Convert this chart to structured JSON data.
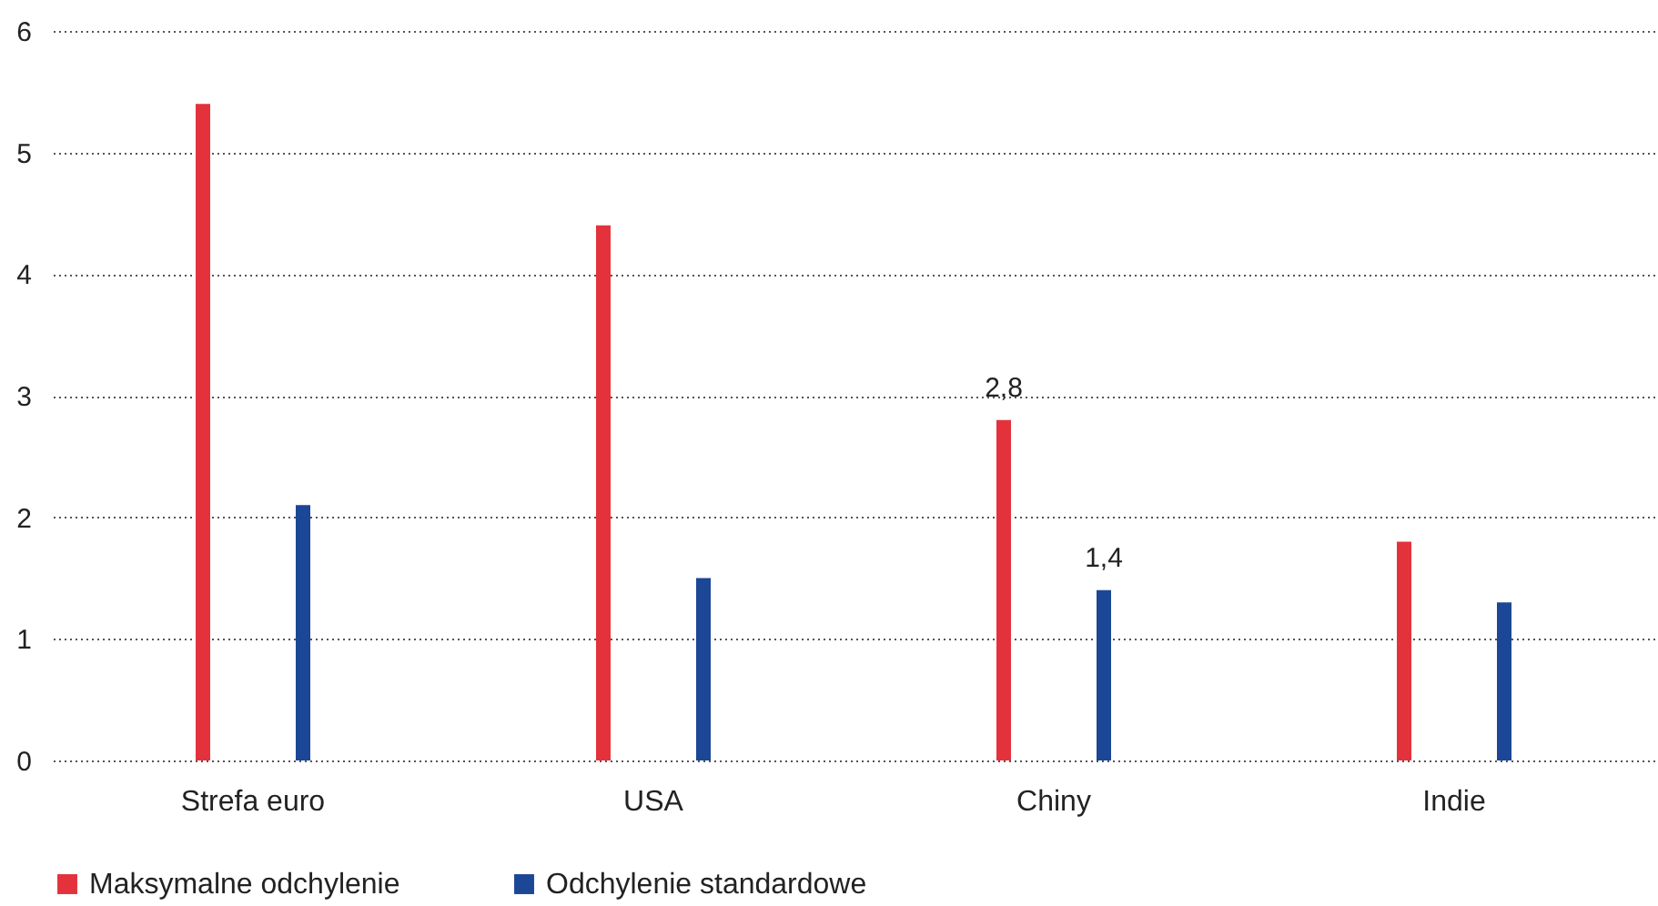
{
  "chart_data": {
    "type": "bar",
    "categories": [
      "Strefa euro",
      "USA",
      "Chiny",
      "Indie"
    ],
    "series": [
      {
        "name": "Maksymalne odchylenie",
        "color": "#e3323c",
        "values": [
          5.4,
          4.4,
          2.8,
          1.8
        ],
        "value_labels": [
          null,
          null,
          "2,8",
          null
        ]
      },
      {
        "name": "Odchylenie standardowe",
        "color": "#1c4696",
        "values": [
          2.1,
          1.5,
          1.4,
          1.3
        ],
        "value_labels": [
          null,
          null,
          "1,4",
          null
        ]
      }
    ],
    "ylim": [
      0,
      6
    ],
    "yticks": [
      0,
      1,
      2,
      3,
      4,
      5,
      6
    ],
    "grid": "y",
    "legend": "bottom left"
  }
}
